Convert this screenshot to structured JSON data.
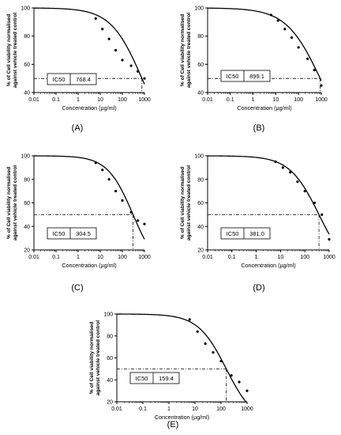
{
  "figure": {
    "chart_data": [
      {
        "type": "scatter",
        "panel_label": "(A)",
        "xlabel": "Concentration (µg/ml)",
        "ylabel": "% of Cell viability normalised against vehicle treated control",
        "x_scale": "log",
        "xlim": [
          0.01,
          1000
        ],
        "ylim": [
          40,
          100
        ],
        "x_ticks": [
          "0.01",
          "0.1",
          "1",
          "10",
          "100",
          "1000"
        ],
        "y_ticks": [
          "40",
          "60",
          "80",
          "100"
        ],
        "ic50_label": "IC50",
        "ic50_value": "768.4",
        "ic50": 768.4,
        "hill": 0.62,
        "top": 100,
        "bottom": 0,
        "series": [
          {
            "points": [
              [
                6.25,
                92.5
              ],
              [
                12.5,
                85
              ],
              [
                25,
                78
              ],
              [
                50,
                70
              ],
              [
                100,
                63
              ],
              [
                250,
                59
              ],
              [
                500,
                55
              ],
              [
                1000,
                50
              ]
            ]
          }
        ]
      },
      {
        "type": "scatter",
        "panel_label": "(B)",
        "xlabel": "Concentration (µg/ml)",
        "ylabel": "% of Cell viability normalised against vehicle treated control",
        "x_scale": "log",
        "xlim": [
          0.01,
          1000
        ],
        "ylim": [
          40,
          100
        ],
        "x_ticks": [
          "0.01",
          "0.1",
          "1",
          "10",
          "100",
          "1000"
        ],
        "y_ticks": [
          "40",
          "60",
          "80",
          "100"
        ],
        "ic50_label": "IC50",
        "ic50_value": "899.1",
        "ic50": 899.1,
        "hill": 0.58,
        "top": 100,
        "bottom": 0,
        "series": [
          {
            "points": [
              [
                6.25,
                95
              ],
              [
                12.5,
                91
              ],
              [
                25,
                85
              ],
              [
                50,
                79
              ],
              [
                100,
                72
              ],
              [
                250,
                64
              ],
              [
                500,
                56
              ],
              [
                1000,
                45
              ]
            ]
          }
        ]
      },
      {
        "type": "scatter",
        "panel_label": "(C)",
        "xlabel": "Concentration (µg/ml)",
        "ylabel": "% of Cell viability normalised against vehicle treated control",
        "x_scale": "log",
        "xlim": [
          0.01,
          1000
        ],
        "ylim": [
          20,
          100
        ],
        "x_ticks": [
          "0.01",
          "0.1",
          "1",
          "10",
          "100",
          "1000"
        ],
        "y_ticks": [
          "20",
          "40",
          "60",
          "80",
          "100"
        ],
        "ic50_label": "IC50",
        "ic50_value": "304.5",
        "ic50": 304.5,
        "hill": 0.75,
        "top": 100,
        "bottom": 0,
        "series": [
          {
            "points": [
              [
                6.25,
                94
              ],
              [
                12.5,
                88
              ],
              [
                25,
                80
              ],
              [
                50,
                70
              ],
              [
                100,
                62
              ],
              [
                250,
                52
              ],
              [
                500,
                45
              ],
              [
                1000,
                42
              ]
            ]
          }
        ]
      },
      {
        "type": "scatter",
        "panel_label": "(D)",
        "xlabel": "Concentration (µg/ml)",
        "ylabel": "% of Cell viability normalised against vehicle treated control",
        "x_scale": "log",
        "xlim": [
          0.01,
          1000
        ],
        "ylim": [
          20,
          100
        ],
        "x_ticks": [
          "0.01",
          "0.1",
          "1",
          "10",
          "100",
          "1000"
        ],
        "y_ticks": [
          "20",
          "40",
          "60",
          "80",
          "100"
        ],
        "ic50_label": "IC50",
        "ic50_value": "381.0",
        "ic50": 381.0,
        "hill": 0.72,
        "top": 100,
        "bottom": 0,
        "series": [
          {
            "points": [
              [
                6.25,
                95
              ],
              [
                12.5,
                90
              ],
              [
                25,
                86
              ],
              [
                50,
                78
              ],
              [
                100,
                70
              ],
              [
                250,
                60
              ],
              [
                500,
                50
              ],
              [
                1000,
                29
              ]
            ]
          }
        ]
      },
      {
        "type": "scatter",
        "panel_label": "(E)",
        "xlabel": "Concentration (µg/ml)",
        "ylabel": "% of Cell viability normalised against vehicle treated control",
        "x_scale": "log",
        "xlim": [
          0.01,
          1000
        ],
        "ylim": [
          20,
          100
        ],
        "x_ticks": [
          "0.01",
          "0.1",
          "1",
          "10",
          "100",
          "1000"
        ],
        "y_ticks": [
          "20",
          "40",
          "60",
          "80",
          "100"
        ],
        "ic50_label": "IC50",
        "ic50_value": "159.4",
        "ic50": 159.4,
        "hill": 0.8,
        "top": 100,
        "bottom": 0,
        "series": [
          {
            "points": [
              [
                6.25,
                95
              ],
              [
                12.5,
                84
              ],
              [
                25,
                73
              ],
              [
                50,
                65
              ],
              [
                100,
                57
              ],
              [
                250,
                44
              ],
              [
                500,
                38
              ],
              [
                1000,
                30
              ]
            ]
          }
        ]
      }
    ]
  }
}
